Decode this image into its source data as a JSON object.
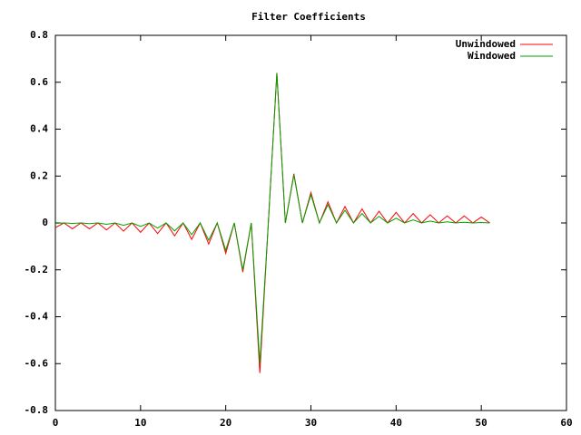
{
  "chart_data": {
    "type": "line",
    "title": "Filter Coefficients",
    "x": [
      0,
      1,
      2,
      3,
      4,
      5,
      6,
      7,
      8,
      9,
      10,
      11,
      12,
      13,
      14,
      15,
      16,
      17,
      18,
      19,
      20,
      21,
      22,
      23,
      24,
      25,
      26,
      27,
      28,
      29,
      30,
      31,
      32,
      33,
      34,
      35,
      36,
      37,
      38,
      39,
      40,
      41,
      42,
      43,
      44,
      45,
      46,
      47,
      48,
      49,
      50,
      51
    ],
    "series": [
      {
        "name": "Unwindowed",
        "color": "#ff0000",
        "values": [
          -0.02,
          0,
          -0.025,
          0,
          -0.025,
          0,
          -0.03,
          0,
          -0.035,
          0,
          -0.04,
          0,
          -0.045,
          0,
          -0.055,
          0,
          -0.07,
          0,
          -0.09,
          0,
          -0.13,
          0,
          -0.21,
          0,
          -0.64,
          0,
          0.64,
          0,
          0.21,
          0,
          0.13,
          0,
          0.09,
          0,
          0.07,
          0,
          0.06,
          0,
          0.05,
          0,
          0.045,
          0,
          0.04,
          0,
          0.035,
          0,
          0.03,
          0,
          0.03,
          0,
          0.025,
          0
        ]
      },
      {
        "name": "Windowed",
        "color": "#00a000",
        "values": [
          -0.002,
          0,
          -0.002,
          0,
          -0.003,
          0,
          -0.006,
          0,
          -0.01,
          0,
          -0.015,
          0,
          -0.022,
          0,
          -0.034,
          0,
          -0.05,
          0,
          -0.074,
          0,
          -0.117,
          0,
          -0.201,
          0,
          -0.6,
          0,
          0.639,
          0,
          0.205,
          0,
          0.121,
          0,
          0.078,
          0,
          0.054,
          0,
          0.04,
          0,
          0.028,
          0,
          0.02,
          0,
          0.013,
          0,
          0.008,
          0,
          0.005,
          0,
          0.003,
          0,
          0.002,
          0
        ]
      }
    ],
    "xlim": [
      0,
      60
    ],
    "xticks": [
      0,
      10,
      20,
      30,
      40,
      50,
      60
    ],
    "ylim": [
      -0.8,
      0.8
    ],
    "yticks": [
      -0.8,
      -0.6,
      -0.4,
      -0.2,
      0,
      0.2,
      0.4,
      0.6,
      0.8
    ],
    "legend": "top-right"
  }
}
